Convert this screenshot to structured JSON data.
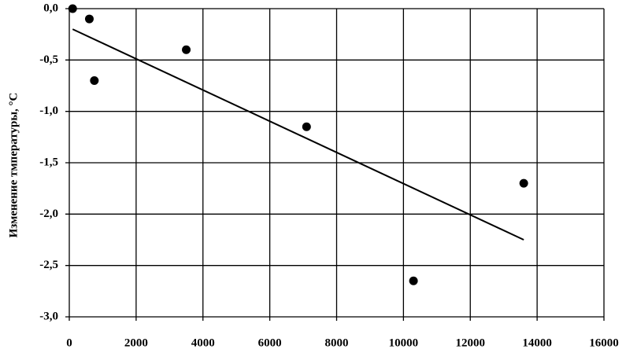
{
  "chart_data": {
    "type": "scatter",
    "y_label": "Изменение тмпературы, °С",
    "x": [
      100,
      600,
      750,
      3500,
      7100,
      10300,
      13600
    ],
    "values": [
      0.0,
      -0.1,
      -0.7,
      -0.4,
      -1.15,
      -2.65,
      -1.7
    ],
    "color": "#000000",
    "trendline": {
      "x": [
        100,
        13600
      ],
      "values": [
        -0.2,
        -2.25
      ],
      "color": "#000000"
    },
    "xlim": [
      0,
      16000
    ],
    "xticks": [
      0,
      2000,
      4000,
      6000,
      8000,
      10000,
      12000,
      14000,
      16000
    ],
    "ylim": [
      -3,
      0
    ],
    "yticks": [
      {
        "value": -3,
        "label": "-3,0"
      },
      {
        "value": -2.5,
        "label": "-2,5"
      },
      {
        "value": -2,
        "label": "-2,0"
      },
      {
        "value": -1.5,
        "label": "-1,5"
      },
      {
        "value": -1,
        "label": "-1,0"
      },
      {
        "value": -0.5,
        "label": "-0,5"
      },
      {
        "value": 0,
        "label": "0,0"
      }
    ],
    "grid": true
  }
}
